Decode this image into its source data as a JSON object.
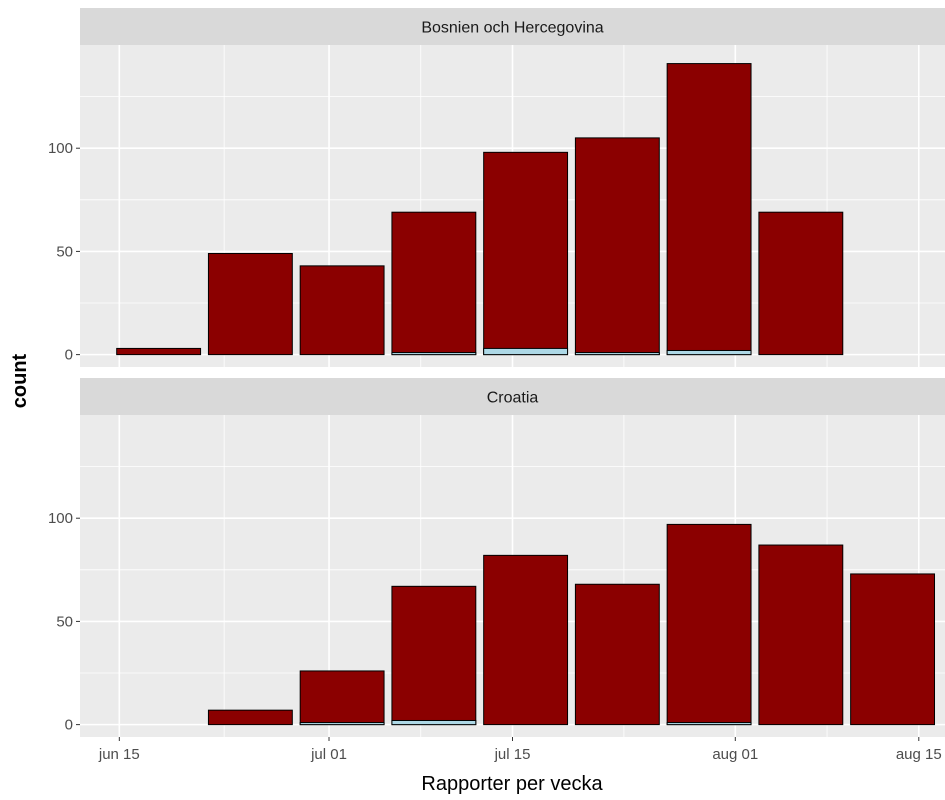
{
  "chart_data": {
    "type": "bar",
    "facet_layout": "stacked vertically, shared x axis",
    "xlabel": "Rapporter per vecka",
    "ylabel": "count",
    "ylim": [
      -6,
      150
    ],
    "y_ticks": [
      0,
      50,
      100
    ],
    "x_tick_labels": [
      "jun 15",
      "jul 01",
      "jul 15",
      "aug 01",
      "aug 15"
    ],
    "x_tick_dates": [
      "2020-06-15",
      "2020-07-01",
      "2020-07-15",
      "2020-08-01",
      "2020-08-15"
    ],
    "x_range": [
      "2020-06-12",
      "2020-08-17"
    ],
    "week_starts": [
      "2020-06-15",
      "2020-06-22",
      "2020-06-29",
      "2020-07-06",
      "2020-07-13",
      "2020-07-20",
      "2020-07-27",
      "2020-08-03",
      "2020-08-10"
    ],
    "grid": true,
    "colors": {
      "bar_fill": "#8b0000",
      "secondary_fill": "#add8e6",
      "bar_outline": "#000000",
      "panel_bg": "#ebebeb",
      "strip_bg": "#d9d9d9",
      "grid": "#ffffff"
    },
    "panels": [
      {
        "title": "Bosnien och Hercegovina",
        "bars": [
          {
            "week": "2020-06-15",
            "total": 3,
            "secondary": 0
          },
          {
            "week": "2020-06-22",
            "total": 49,
            "secondary": 0
          },
          {
            "week": "2020-06-29",
            "total": 43,
            "secondary": 0
          },
          {
            "week": "2020-07-06",
            "total": 69,
            "secondary": 1
          },
          {
            "week": "2020-07-13",
            "total": 98,
            "secondary": 3
          },
          {
            "week": "2020-07-20",
            "total": 105,
            "secondary": 1
          },
          {
            "week": "2020-07-27",
            "total": 141,
            "secondary": 2
          },
          {
            "week": "2020-08-03",
            "total": 69,
            "secondary": 0
          }
        ]
      },
      {
        "title": "Croatia",
        "bars": [
          {
            "week": "2020-06-22",
            "total": 7,
            "secondary": 0
          },
          {
            "week": "2020-06-29",
            "total": 26,
            "secondary": 1
          },
          {
            "week": "2020-07-06",
            "total": 67,
            "secondary": 2
          },
          {
            "week": "2020-07-13",
            "total": 82,
            "secondary": 0
          },
          {
            "week": "2020-07-20",
            "total": 68,
            "secondary": 0
          },
          {
            "week": "2020-07-27",
            "total": 97,
            "secondary": 1
          },
          {
            "week": "2020-08-03",
            "total": 87,
            "secondary": 0
          },
          {
            "week": "2020-08-10",
            "total": 73,
            "secondary": 0
          }
        ]
      }
    ]
  }
}
